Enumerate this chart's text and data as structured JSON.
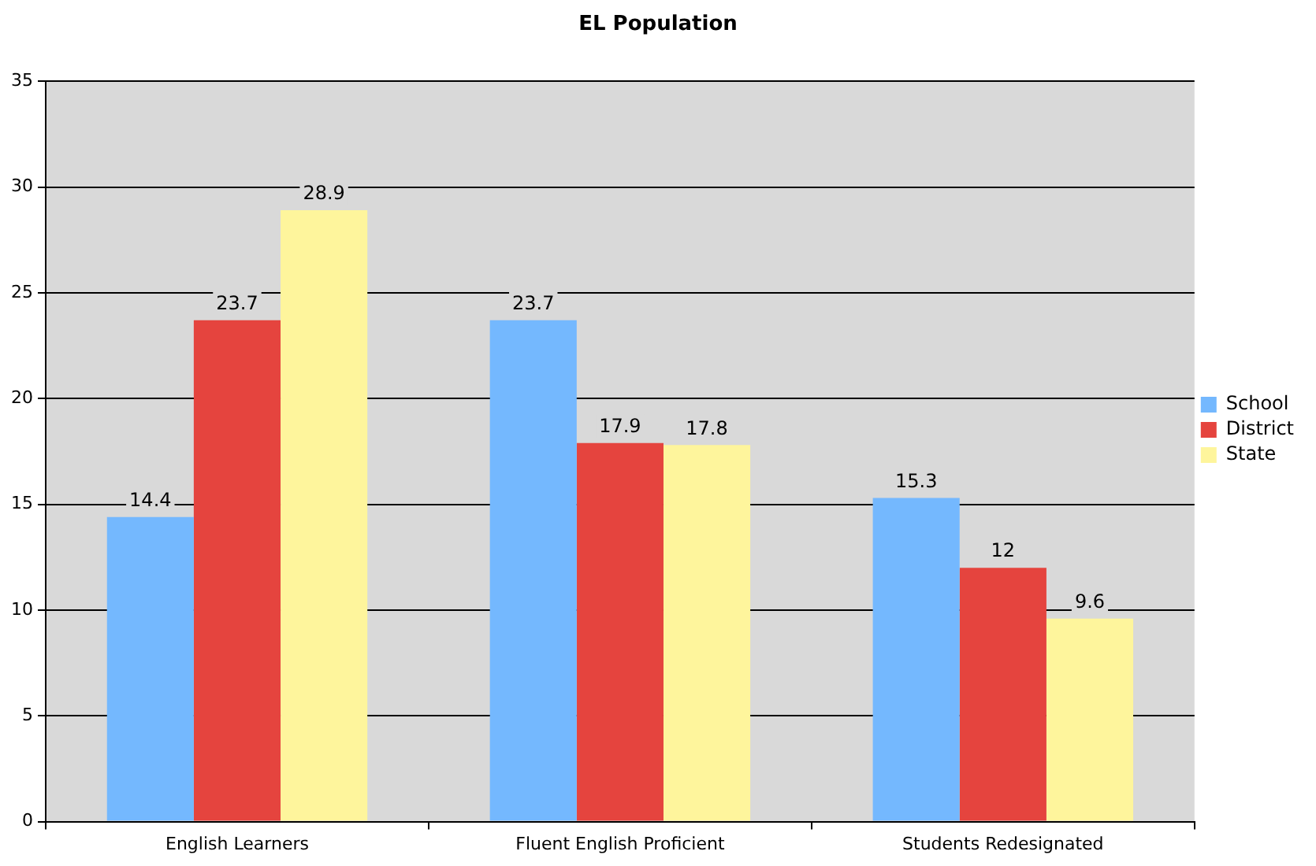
{
  "chart_data": {
    "type": "bar",
    "title": "EL Population",
    "categories": [
      "English Learners",
      "Fluent English Proficient",
      "Students Redesignated"
    ],
    "series": [
      {
        "name": "School",
        "color": "#74b8fe",
        "values": [
          14.4,
          23.7,
          15.3
        ]
      },
      {
        "name": "District",
        "color": "#e5443e",
        "values": [
          23.7,
          17.9,
          12
        ]
      },
      {
        "name": "State",
        "color": "#fef59c",
        "values": [
          28.9,
          17.8,
          9.6
        ]
      }
    ],
    "ylim": [
      0,
      35
    ],
    "yticks": [
      0,
      5,
      10,
      15,
      20,
      25,
      30,
      35
    ],
    "grid": "y",
    "legend": "right",
    "data_labels": true
  }
}
